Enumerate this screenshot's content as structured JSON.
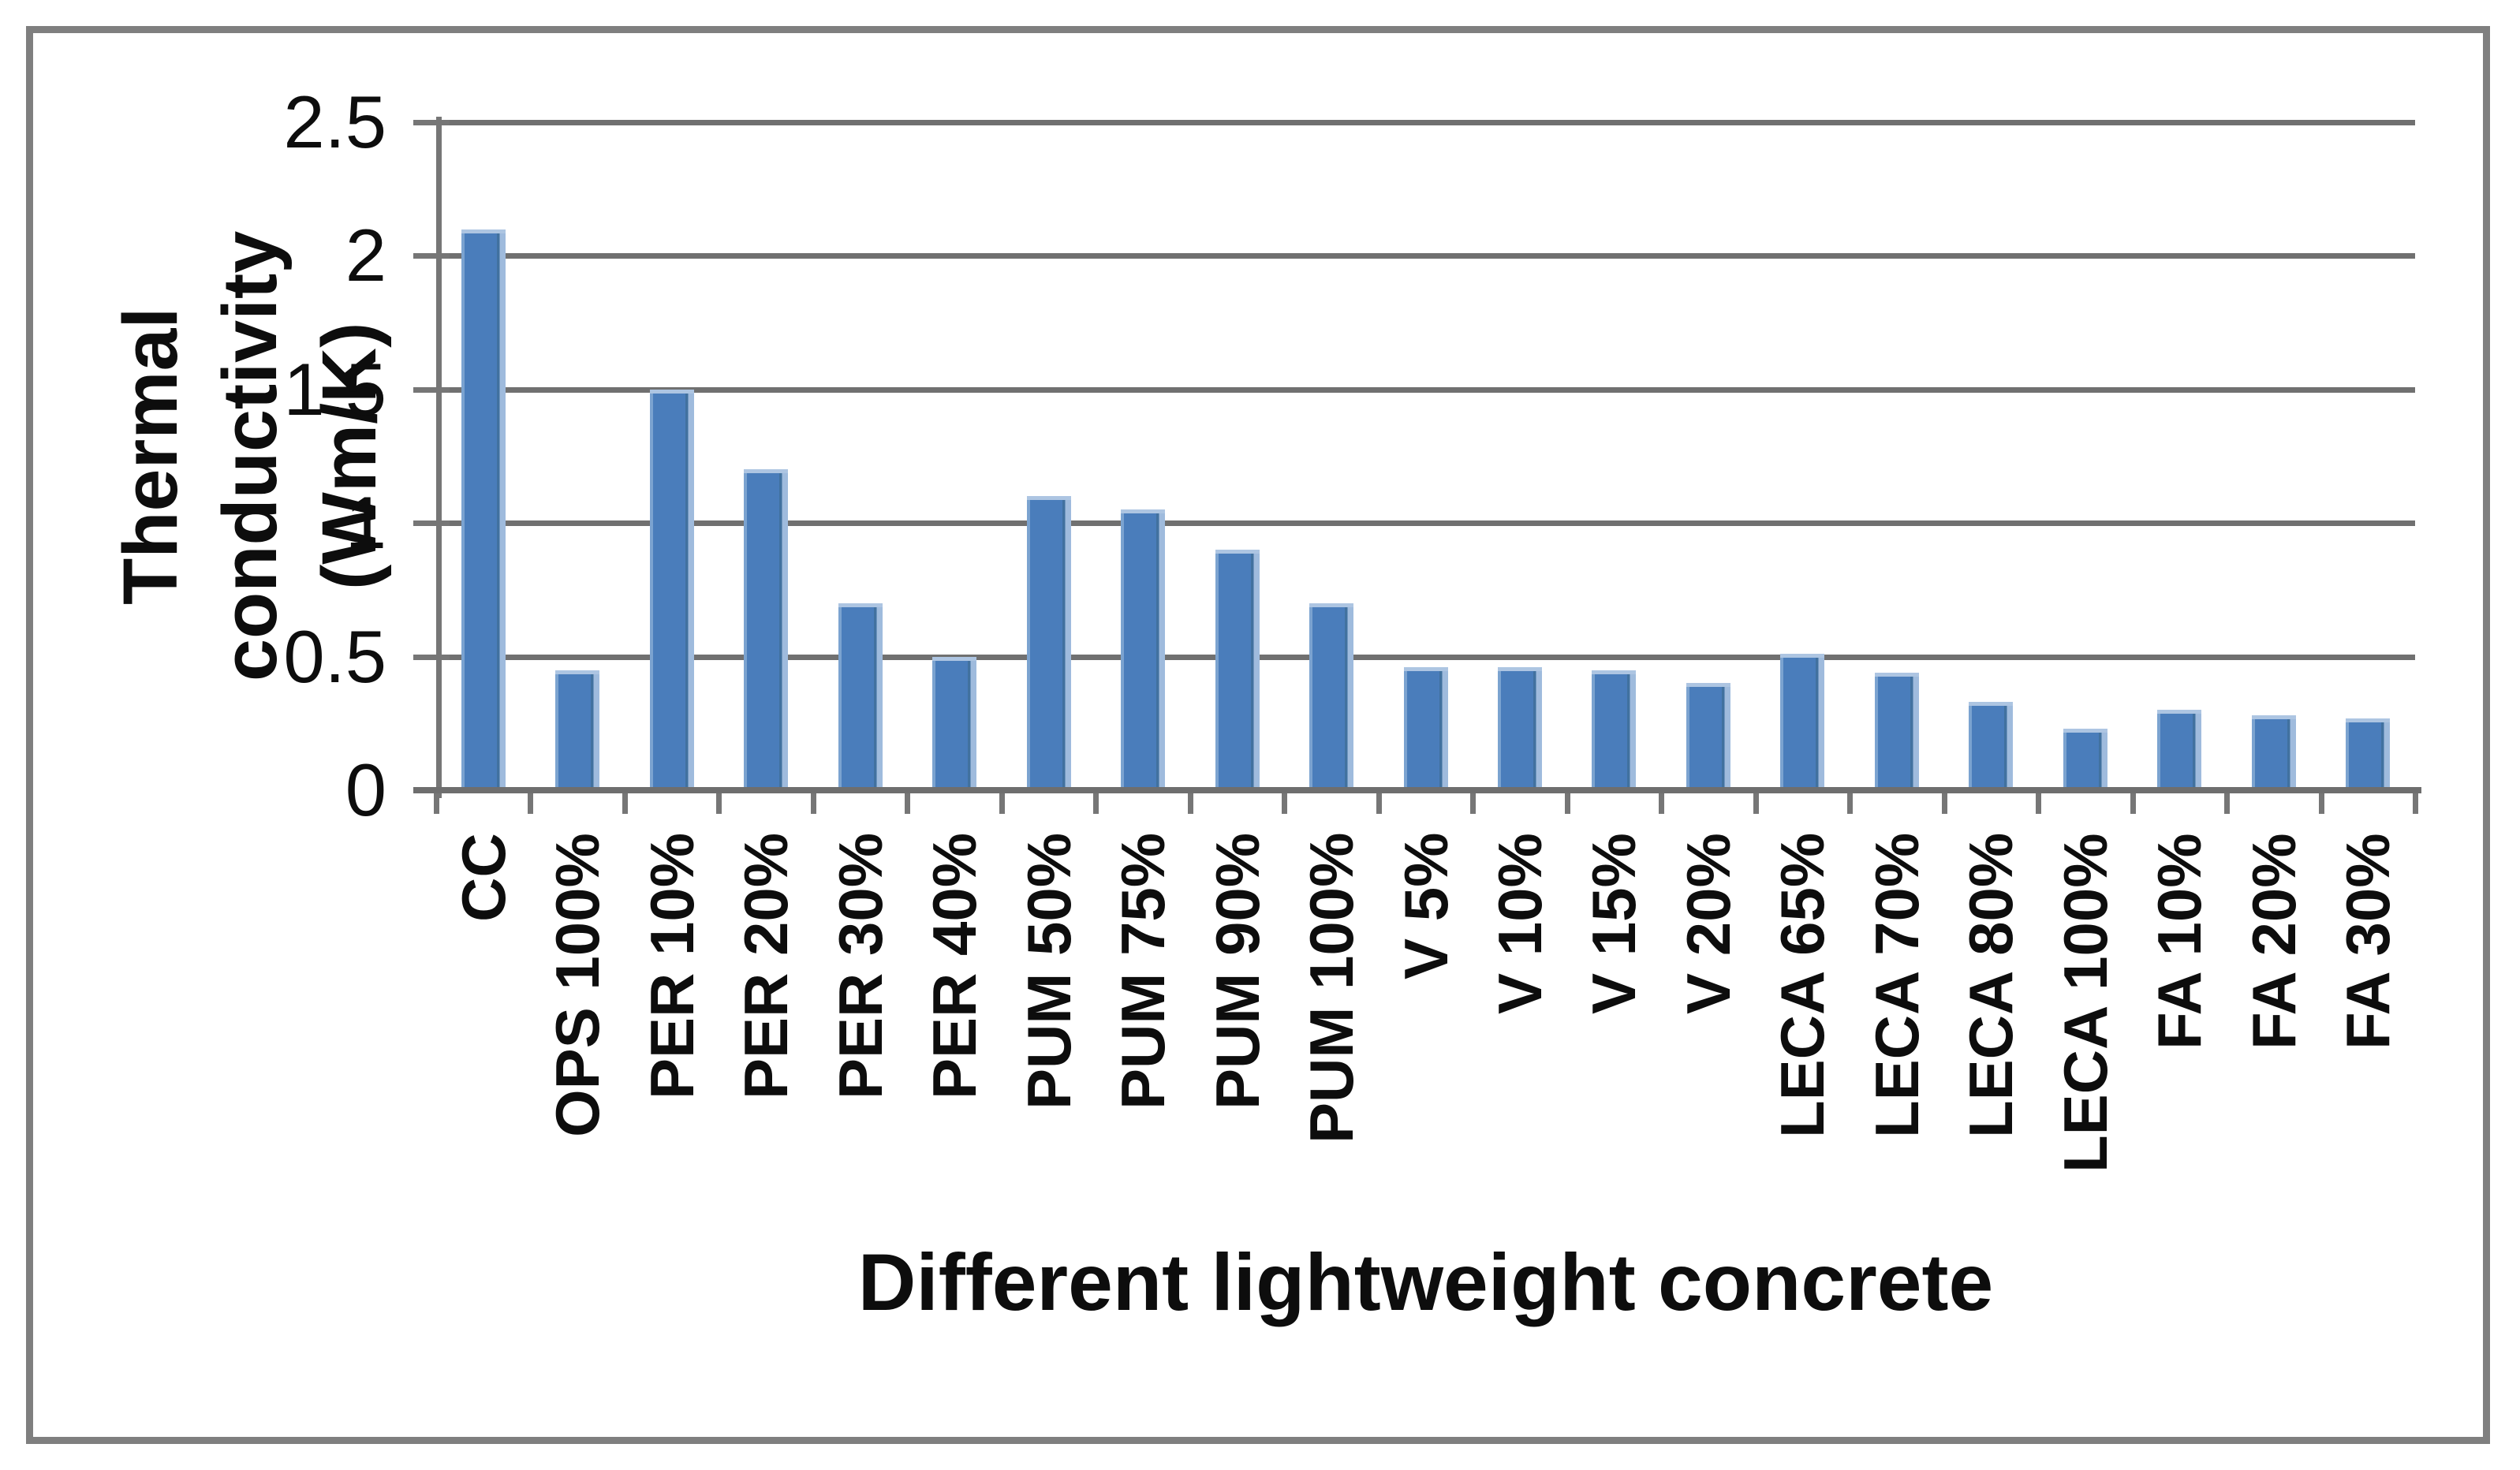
{
  "figure": {
    "background": "#ffffff",
    "frame_color": "#7f7f7f"
  },
  "chart_data": {
    "type": "bar",
    "title": "",
    "xlabel": "Different lightweight concrete",
    "ylabel": "Thermal conductivity (Wm/K)",
    "ylabel_lines": [
      "Thermal conductivity",
      "(Wm/K)"
    ],
    "categories": [
      "CC",
      "OPS 100%",
      "PER 10%",
      "PER 20%",
      "PER 30%",
      "PER 40%",
      "PUM 50%",
      "PUM 75%",
      "PUM 90%",
      "PUM 100%",
      "V 5%",
      "V 10%",
      "V 15%",
      "V 20%",
      "LECA 65%",
      "LECA 70%",
      "LECA 80%",
      "LECA 100%",
      "FA 10%",
      "FA 20%",
      "FA 30%"
    ],
    "values": [
      2.1,
      0.45,
      1.5,
      1.2,
      0.7,
      0.5,
      1.1,
      1.05,
      0.9,
      0.7,
      0.46,
      0.46,
      0.45,
      0.4,
      0.51,
      0.44,
      0.33,
      0.23,
      0.3,
      0.28,
      0.27
    ],
    "yticks": [
      0,
      0.5,
      1,
      1.5,
      2,
      2.5
    ],
    "ytick_labels": [
      "0",
      "0.5",
      "1",
      "1.5",
      "2",
      "2.5"
    ],
    "ylim": [
      0,
      2.5
    ],
    "grid": "horizontal",
    "legend": "none",
    "colors": {
      "bar": "#4a7dbb",
      "bar_right_edge": "#9fbbdd",
      "bar_left_edge": "#7ba3d0",
      "bar_top_cap": "#adc5e2",
      "gridline": "#707070",
      "axis": "#767676",
      "text": "#0d0d0d"
    }
  }
}
